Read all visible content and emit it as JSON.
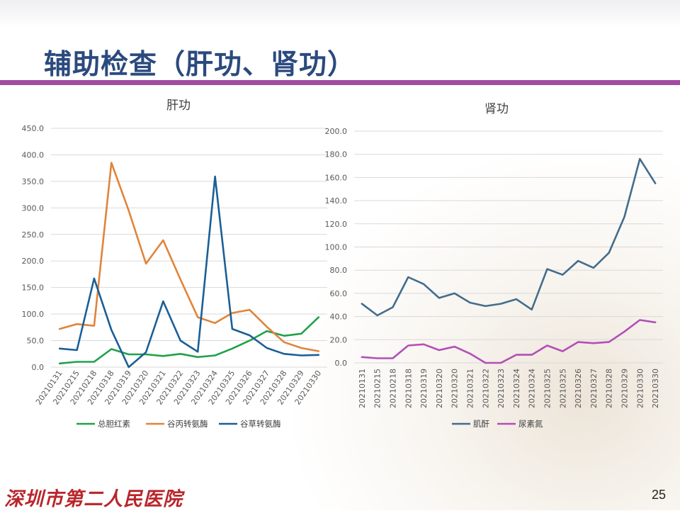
{
  "page": {
    "title": "辅助检查（肝功、肾功）",
    "footer_logo": "深圳市第二人民医院",
    "page_number": "25"
  },
  "colors": {
    "title": "#2b4a7e",
    "rule": "#a24aa0",
    "logo": "#b8262b"
  },
  "chart_data": [
    {
      "type": "line",
      "title": "肝功",
      "categories": [
        "20210131",
        "20210215",
        "20210218",
        "20210318",
        "20210319",
        "20210320",
        "20210321",
        "20210322",
        "20210323",
        "20210324",
        "20210325",
        "20210326",
        "20210327",
        "20210328",
        "20210329",
        "20210330"
      ],
      "yticks": [
        "0.0",
        "50.0",
        "100.0",
        "150.0",
        "200.0",
        "250.0",
        "300.0",
        "350.0",
        "400.0",
        "450.0"
      ],
      "ylim": [
        0,
        450
      ],
      "grid": true,
      "legend_position": "bottom",
      "series": [
        {
          "name": "总胆红素",
          "color": "#21a14a",
          "values": [
            7,
            10,
            10,
            34,
            24,
            24,
            21,
            25,
            19,
            22,
            35,
            50,
            68,
            59,
            63,
            94
          ]
        },
        {
          "name": "谷丙转氨酶",
          "color": "#e0843a",
          "values": [
            72,
            81,
            78,
            385,
            295,
            195,
            239,
            165,
            94,
            83,
            102,
            108,
            76,
            47,
            36,
            30
          ]
        },
        {
          "name": "谷草转氨酶",
          "color": "#1b5f96",
          "values": [
            35,
            32,
            167,
            70,
            0,
            28,
            124,
            50,
            29,
            359,
            72,
            60,
            36,
            25,
            22,
            23
          ]
        }
      ]
    },
    {
      "type": "line",
      "title": "肾功",
      "categories": [
        "20210131",
        "20210215",
        "20210218",
        "20210318",
        "20210319",
        "20210320",
        "20210320",
        "20210321",
        "20210322",
        "20210323",
        "20210324",
        "20210324",
        "20210325",
        "20210325",
        "20210326",
        "20210327",
        "20210328",
        "20210329",
        "20210330",
        "20210330"
      ],
      "yticks": [
        "0.0",
        "20.0",
        "40.0",
        "60.0",
        "80.0",
        "100.0",
        "120.0",
        "140.0",
        "160.0",
        "180.0",
        "200.0"
      ],
      "ylim": [
        0,
        200
      ],
      "grid": true,
      "legend_position": "bottom",
      "series": [
        {
          "name": "肌酐",
          "color": "#436d8c",
          "values": [
            51,
            41,
            48,
            74,
            68,
            56,
            60,
            52,
            49,
            51,
            55,
            46,
            81,
            76,
            88,
            82,
            95,
            126,
            176,
            155
          ]
        },
        {
          "name": "尿素氮",
          "color": "#b34fb6",
          "values": [
            5,
            4,
            4,
            15,
            16,
            11,
            14,
            8,
            0,
            0,
            7,
            7,
            15,
            10,
            18,
            17,
            18,
            27,
            37,
            35
          ]
        }
      ]
    }
  ]
}
